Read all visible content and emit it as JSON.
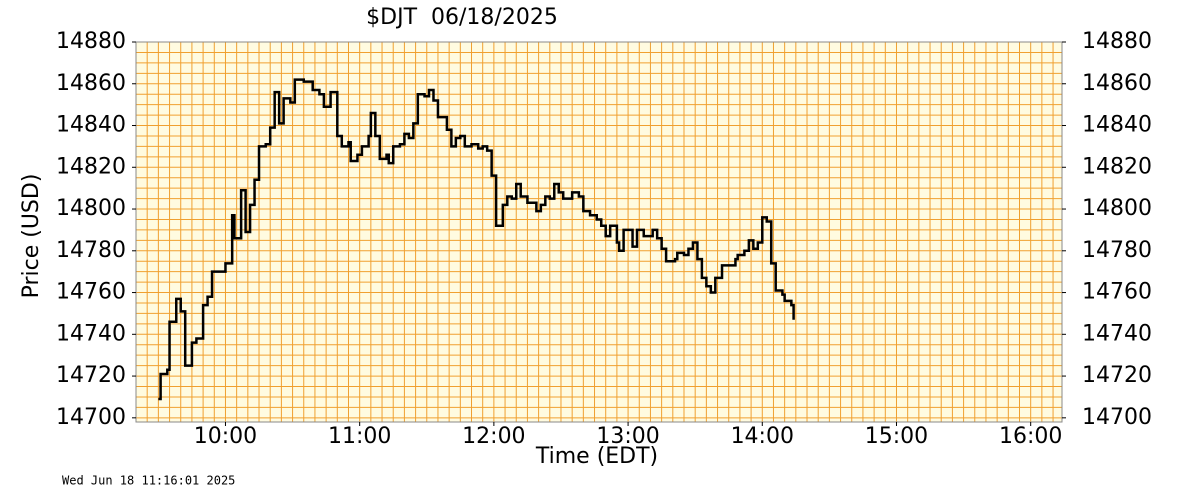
{
  "chart_data": {
    "type": "step",
    "title": "$DJT  06/18/2025",
    "xlabel": "Time (EDT)",
    "ylabel": "Price (USD)",
    "footer": "Wed Jun 18 11:16:01 2025",
    "xlim": [
      560,
      974
    ],
    "ylim": [
      14698,
      14880
    ],
    "xticks": [
      {
        "value": 600,
        "label": "10:00"
      },
      {
        "value": 660,
        "label": "11:00"
      },
      {
        "value": 720,
        "label": "12:00"
      },
      {
        "value": 780,
        "label": "13:00"
      },
      {
        "value": 840,
        "label": "14:00"
      },
      {
        "value": 900,
        "label": "15:00"
      },
      {
        "value": 960,
        "label": "16:00"
      }
    ],
    "yticks": [
      14700,
      14720,
      14740,
      14760,
      14780,
      14800,
      14820,
      14840,
      14860,
      14880
    ],
    "grid": true,
    "grid_step": {
      "x": 5,
      "y": 5
    },
    "grid_color": "#f0a030",
    "background": "#fffbe0",
    "series": [
      {
        "name": "$DJT",
        "color": "#000000",
        "x": [
          570,
          571,
          574,
          575,
          578,
          580,
          582,
          585,
          587,
          590,
          592,
          594,
          597,
          600,
          603,
          604,
          607,
          609,
          611,
          613,
          615,
          618,
          620,
          622,
          624,
          626,
          629,
          631,
          635,
          639,
          642,
          644,
          647,
          650,
          652,
          655,
          656,
          659,
          661,
          664,
          665,
          667,
          669,
          672,
          673,
          675,
          678,
          680,
          682,
          684,
          686,
          689,
          691,
          693,
          695,
          699,
          701,
          703,
          705,
          707,
          710,
          713,
          715,
          717,
          719,
          721,
          724,
          726,
          728,
          730,
          732,
          735,
          737,
          739,
          741,
          743,
          745,
          747,
          749,
          751,
          753,
          755,
          758,
          760,
          763,
          766,
          768,
          770,
          772,
          775,
          776,
          778,
          782,
          784,
          787,
          789,
          791,
          793,
          795,
          797,
          801,
          802,
          805,
          807,
          809,
          811,
          813,
          815,
          817,
          819,
          822,
          826,
          828,
          829,
          832,
          834,
          836,
          838,
          840,
          842,
          844,
          846,
          849,
          850,
          853,
          854
        ],
        "values": [
          14709,
          14721,
          14723,
          14746,
          14757,
          14751,
          14725,
          14736,
          14738,
          14754,
          14758,
          14770,
          14770,
          14774,
          14797,
          14786,
          14809,
          14789,
          14802,
          14814,
          14830,
          14831,
          14839,
          14856,
          14841,
          14853,
          14851,
          14862,
          14861,
          14857,
          14855,
          14849,
          14856,
          14835,
          14830,
          14832,
          14823,
          14826,
          14830,
          14835,
          14846,
          14835,
          14824,
          14826,
          14822,
          14830,
          14831,
          14836,
          14834,
          14841,
          14855,
          14854,
          14857,
          14852,
          14844,
          14838,
          14830,
          14834,
          14835,
          14830,
          14831,
          14829,
          14830,
          14828,
          14816,
          14792,
          14802,
          14806,
          14805,
          14812,
          14806,
          14803,
          14803,
          14799,
          14802,
          14806,
          14805,
          14812,
          14808,
          14805,
          14805,
          14808,
          14806,
          14799,
          14797,
          14795,
          14792,
          14787,
          14792,
          14784,
          14780,
          14790,
          14782,
          14790,
          14787,
          14787,
          14790,
          14786,
          14781,
          14775,
          14776,
          14779,
          14778,
          14781,
          14784,
          14776,
          14767,
          14763,
          14760,
          14767,
          14773,
          14773,
          14776,
          14778,
          14780,
          14785,
          14781,
          14784,
          14796,
          14794,
          14774,
          14761,
          14759,
          14756,
          14754,
          14747
        ]
      }
    ]
  }
}
